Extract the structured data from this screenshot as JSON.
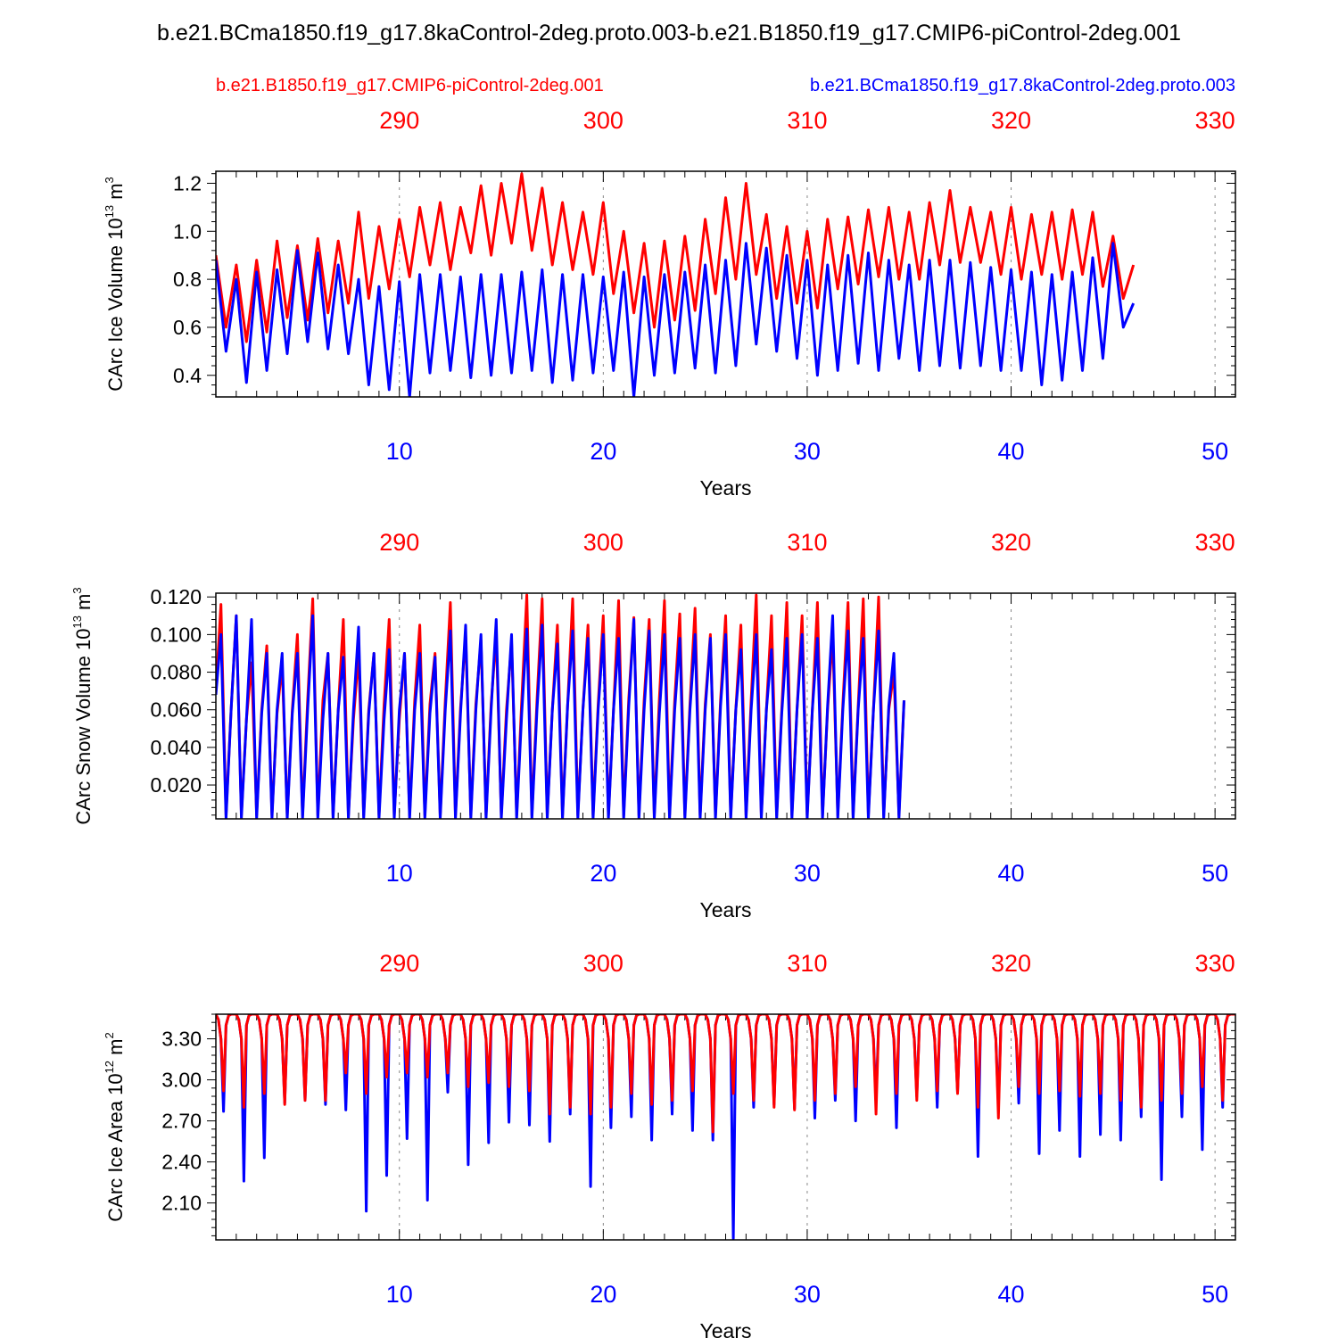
{
  "figure": {
    "title": "b.e21.BCma1850.f19_g17.8kaControl-2deg.proto.003-b.e21.B1850.f19_g17.CMIP6-piControl-2deg.001",
    "legend": {
      "red_case": "b.e21.B1850.f19_g17.CMIP6-piControl-2deg.001",
      "blue_case": "b.e21.BCma1850.f19_g17.8kaControl-2deg.proto.003"
    },
    "colors": {
      "case1": "#ff0000",
      "case2": "#0000ff",
      "axes": "#000000",
      "grid": "#888888"
    }
  },
  "chart_data": [
    {
      "type": "line",
      "id": "ice-volume",
      "title": "",
      "xlabel": "Years",
      "ylabel_prefix": "CArc Ice Volume 10",
      "ylabel_exp": "13",
      "ylabel_unit": " m",
      "ylabel_unit_exp": "3",
      "xlim": [
        1,
        51
      ],
      "ylim": [
        0.31,
        1.25
      ],
      "bottom_ticks": [
        10,
        20,
        30,
        40,
        50
      ],
      "bottom_tick_labels": [
        "10",
        "20",
        "30",
        "40",
        "50"
      ],
      "top_ticks": [
        10,
        20,
        30,
        40,
        50
      ],
      "top_tick_labels": [
        "290",
        "300",
        "310",
        "320",
        "330"
      ],
      "y_ticks": [
        0.4,
        0.6,
        0.8,
        1.0,
        1.2
      ],
      "y_tick_labels": [
        "0.4",
        "0.6",
        "0.8",
        "1.0",
        "1.2"
      ],
      "x_step": 0.5,
      "series": [
        {
          "name": "b.e21.B1850.f19_g17.CMIP6-piControl-2deg.001",
          "color": "#ff0000",
          "x_start": 1,
          "values": [
            0.9,
            0.6,
            0.86,
            0.54,
            0.88,
            0.58,
            0.96,
            0.64,
            0.94,
            0.63,
            0.97,
            0.66,
            0.96,
            0.7,
            1.08,
            0.72,
            1.02,
            0.76,
            1.05,
            0.81,
            1.1,
            0.86,
            1.12,
            0.84,
            1.1,
            0.91,
            1.19,
            0.9,
            1.2,
            0.95,
            1.24,
            0.92,
            1.18,
            0.86,
            1.12,
            0.84,
            1.08,
            0.82,
            1.12,
            0.74,
            1.0,
            0.66,
            0.95,
            0.6,
            0.96,
            0.63,
            0.98,
            0.67,
            1.05,
            0.74,
            1.14,
            0.8,
            1.2,
            0.82,
            1.07,
            0.72,
            1.02,
            0.7,
            1.0,
            0.68,
            1.05,
            0.76,
            1.06,
            0.78,
            1.09,
            0.81,
            1.1,
            0.8,
            1.08,
            0.8,
            1.12,
            0.86,
            1.17,
            0.87,
            1.1,
            0.87,
            1.08,
            0.82,
            1.1,
            0.8,
            1.07,
            0.82,
            1.08,
            0.8,
            1.09,
            0.82,
            1.08,
            0.77,
            0.98,
            0.72,
            0.86
          ]
        },
        {
          "name": "b.e21.BCma1850.f19_g17.8kaControl-2deg.proto.003",
          "color": "#0000ff",
          "x_start": 1,
          "values": [
            0.88,
            0.5,
            0.8,
            0.37,
            0.83,
            0.42,
            0.84,
            0.49,
            0.92,
            0.54,
            0.91,
            0.51,
            0.86,
            0.49,
            0.8,
            0.36,
            0.77,
            0.34,
            0.79,
            0.31,
            0.82,
            0.41,
            0.82,
            0.42,
            0.81,
            0.39,
            0.82,
            0.4,
            0.82,
            0.41,
            0.83,
            0.42,
            0.84,
            0.37,
            0.82,
            0.38,
            0.82,
            0.41,
            0.81,
            0.42,
            0.83,
            0.31,
            0.81,
            0.4,
            0.82,
            0.41,
            0.83,
            0.43,
            0.86,
            0.41,
            0.88,
            0.44,
            0.95,
            0.53,
            0.93,
            0.5,
            0.9,
            0.47,
            0.88,
            0.4,
            0.86,
            0.42,
            0.9,
            0.45,
            0.91,
            0.42,
            0.88,
            0.47,
            0.86,
            0.42,
            0.88,
            0.44,
            0.88,
            0.43,
            0.87,
            0.44,
            0.85,
            0.42,
            0.84,
            0.42,
            0.83,
            0.36,
            0.82,
            0.38,
            0.83,
            0.42,
            0.89,
            0.47,
            0.95,
            0.6,
            0.7
          ]
        }
      ]
    },
    {
      "type": "line",
      "id": "snow-volume",
      "title": "",
      "xlabel": "Years",
      "ylabel_prefix": "CArc Snow Volume 10",
      "ylabel_exp": "13",
      "ylabel_unit": " m",
      "ylabel_unit_exp": "3",
      "xlim": [
        1,
        51
      ],
      "ylim": [
        0.002,
        0.122
      ],
      "bottom_ticks": [
        10,
        20,
        30,
        40,
        50
      ],
      "bottom_tick_labels": [
        "10",
        "20",
        "30",
        "40",
        "50"
      ],
      "top_ticks": [
        10,
        20,
        30,
        40,
        50
      ],
      "top_tick_labels": [
        "290",
        "300",
        "310",
        "320",
        "330"
      ],
      "y_ticks": [
        0.02,
        0.04,
        0.06,
        0.08,
        0.1,
        0.12
      ],
      "y_tick_labels": [
        "0.020",
        "0.040",
        "0.060",
        "0.080",
        "0.100",
        "0.120"
      ],
      "x_step": 0.25,
      "series": [
        {
          "name": "b.e21.B1850.f19_g17.CMIP6-piControl-2deg.001",
          "color": "#ff0000",
          "x_start": 1,
          "values": [
            0.07,
            0.116,
            0.004,
            0.06,
            0.11,
            0.004,
            0.055,
            0.085,
            0.004,
            0.06,
            0.094,
            0.004,
            0.058,
            0.084,
            0.004,
            0.06,
            0.1,
            0.004,
            0.065,
            0.119,
            0.004,
            0.065,
            0.09,
            0.004,
            0.06,
            0.108,
            0.004,
            0.055,
            0.09,
            0.004,
            0.06,
            0.09,
            0.004,
            0.063,
            0.108,
            0.004,
            0.055,
            0.09,
            0.004,
            0.065,
            0.105,
            0.004,
            0.063,
            0.09,
            0.004,
            0.065,
            0.117,
            0.004,
            0.061,
            0.1,
            0.004,
            0.063,
            0.097,
            0.004,
            0.063,
            0.1,
            0.004,
            0.06,
            0.096,
            0.004,
            0.065,
            0.121,
            0.004,
            0.065,
            0.119,
            0.004,
            0.06,
            0.105,
            0.004,
            0.062,
            0.119,
            0.004,
            0.06,
            0.105,
            0.004,
            0.063,
            0.11,
            0.004,
            0.06,
            0.118,
            0.004,
            0.066,
            0.109,
            0.004,
            0.065,
            0.108,
            0.004,
            0.066,
            0.118,
            0.004,
            0.065,
            0.111,
            0.004,
            0.063,
            0.114,
            0.004,
            0.063,
            0.1,
            0.004,
            0.065,
            0.11,
            0.004,
            0.06,
            0.105,
            0.004,
            0.065,
            0.121,
            0.004,
            0.06,
            0.11,
            0.004,
            0.06,
            0.117,
            0.004,
            0.06,
            0.11,
            0.004,
            0.06,
            0.117,
            0.004,
            0.06,
            0.1,
            0.004,
            0.063,
            0.117,
            0.004,
            0.062,
            0.119,
            0.004,
            0.06,
            0.12,
            0.004,
            0.06,
            0.08,
            0.004,
            0.065
          ]
        },
        {
          "name": "b.e21.BCma1850.f19_g17.8kaControl-2deg.proto.003",
          "color": "#0000ff",
          "x_start": 1,
          "values": [
            0.068,
            0.1,
            0.002,
            0.06,
            0.11,
            0.002,
            0.055,
            0.108,
            0.002,
            0.058,
            0.09,
            0.002,
            0.06,
            0.09,
            0.002,
            0.058,
            0.09,
            0.002,
            0.06,
            0.11,
            0.002,
            0.055,
            0.09,
            0.002,
            0.06,
            0.088,
            0.002,
            0.06,
            0.104,
            0.002,
            0.058,
            0.09,
            0.002,
            0.055,
            0.092,
            0.002,
            0.06,
            0.09,
            0.002,
            0.06,
            0.09,
            0.002,
            0.058,
            0.088,
            0.002,
            0.06,
            0.102,
            0.002,
            0.058,
            0.105,
            0.002,
            0.06,
            0.1,
            0.002,
            0.06,
            0.108,
            0.002,
            0.055,
            0.1,
            0.002,
            0.058,
            0.103,
            0.002,
            0.06,
            0.105,
            0.002,
            0.06,
            0.095,
            0.002,
            0.062,
            0.102,
            0.002,
            0.06,
            0.098,
            0.002,
            0.06,
            0.1,
            0.002,
            0.06,
            0.098,
            0.002,
            0.062,
            0.108,
            0.002,
            0.06,
            0.102,
            0.002,
            0.058,
            0.1,
            0.002,
            0.06,
            0.098,
            0.002,
            0.06,
            0.1,
            0.002,
            0.06,
            0.098,
            0.002,
            0.062,
            0.1,
            0.002,
            0.06,
            0.092,
            0.002,
            0.06,
            0.1,
            0.002,
            0.06,
            0.092,
            0.002,
            0.058,
            0.098,
            0.002,
            0.06,
            0.1,
            0.002,
            0.06,
            0.098,
            0.002,
            0.062,
            0.11,
            0.002,
            0.06,
            0.102,
            0.002,
            0.06,
            0.098,
            0.002,
            0.06,
            0.102,
            0.002,
            0.062,
            0.09,
            0.002,
            0.065
          ]
        }
      ]
    },
    {
      "type": "line",
      "id": "ice-area",
      "title": "",
      "xlabel": "Years",
      "ylabel_prefix": "CArc Ice Area 10",
      "ylabel_exp": "12",
      "ylabel_unit": " m",
      "ylabel_unit_exp": "2",
      "xlim": [
        1,
        51
      ],
      "ylim": [
        1.83,
        3.48
      ],
      "bottom_ticks": [
        10,
        20,
        30,
        40,
        50
      ],
      "bottom_tick_labels": [
        "10",
        "20",
        "30",
        "40",
        "50"
      ],
      "top_ticks": [
        10,
        20,
        30,
        40,
        50
      ],
      "top_tick_labels": [
        "290",
        "300",
        "310",
        "320",
        "330"
      ],
      "y_ticks": [
        2.1,
        2.4,
        2.7,
        3.0,
        3.3
      ],
      "y_tick_labels": [
        "2.10",
        "2.40",
        "2.70",
        "3.00",
        "3.30"
      ],
      "year_pattern": [
        3.48,
        3.44,
        3.3,
        "min",
        3.4,
        3.47,
        3.48,
        3.48
      ],
      "series": [
        {
          "name": "b.e21.BCma1850.f19_g17.8kaControl-2deg.proto.003",
          "color": "#0000ff",
          "x_start": 1,
          "annual_minima": [
            2.77,
            2.26,
            2.43,
            2.83,
            2.85,
            2.82,
            2.78,
            2.04,
            2.3,
            2.57,
            2.12,
            2.91,
            2.38,
            2.54,
            2.69,
            2.67,
            2.55,
            2.75,
            2.22,
            2.65,
            2.73,
            2.56,
            2.75,
            2.63,
            2.56,
            1.84,
            2.8,
            2.82,
            2.79,
            2.72,
            2.85,
            2.7,
            2.85,
            2.65,
            2.88,
            2.8,
            2.91,
            2.44,
            2.8,
            2.83,
            2.46,
            2.63,
            2.44,
            2.6,
            2.56,
            2.73,
            2.27,
            2.73,
            2.49,
            2.8
          ]
        },
        {
          "name": "b.e21.B1850.f19_g17.CMIP6-piControl-2deg.001",
          "color": "#ff0000",
          "x_start": 1,
          "annual_minima": [
            2.92,
            2.8,
            2.9,
            2.82,
            2.85,
            2.85,
            3.05,
            2.9,
            3.02,
            3.05,
            3.02,
            3.05,
            2.95,
            2.98,
            2.95,
            2.92,
            2.75,
            2.8,
            2.75,
            2.8,
            2.9,
            2.82,
            2.85,
            2.92,
            2.62,
            2.9,
            2.85,
            2.8,
            2.78,
            2.85,
            2.9,
            2.95,
            2.75,
            2.9,
            2.85,
            2.92,
            2.9,
            2.8,
            2.72,
            2.95,
            2.9,
            2.92,
            2.88,
            2.9,
            2.85,
            2.8,
            2.85,
            2.9,
            2.95,
            2.85
          ]
        }
      ]
    }
  ]
}
